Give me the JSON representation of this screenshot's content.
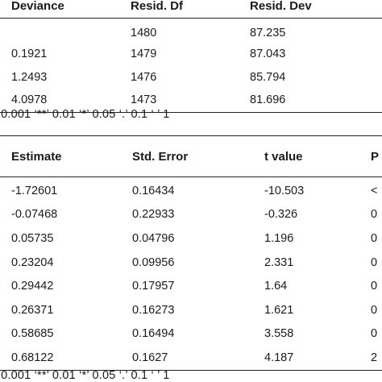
{
  "anova_table": {
    "headers": [
      "Deviance",
      "Resid. Df",
      "Resid. Dev"
    ],
    "rows": [
      [
        "",
        "1480",
        "87.235"
      ],
      [
        "0.1921",
        "1479",
        "87.043"
      ],
      [
        "1.2493",
        "1476",
        "85.794"
      ],
      [
        "4.0978",
        "1473",
        "81.696"
      ]
    ]
  },
  "signif_codes_1": "’ 0.001 ‘**’ 0.01 ‘*’ 0.05 ‘.’ 0.1 ‘ ’ 1",
  "coef_table": {
    "headers": [
      "Estimate",
      "Std. Error",
      "t value",
      "P"
    ],
    "rows": [
      [
        "-1.72601",
        "0.16434",
        "-10.503",
        "<"
      ],
      [
        "-0.07468",
        "0.22933",
        "-0.326",
        "0"
      ],
      [
        "0.05735",
        "0.04796",
        "1.196",
        "0"
      ],
      [
        "0.23204",
        "0.09956",
        "2.331",
        "0"
      ],
      [
        "0.29442",
        "0.17957",
        "1.64",
        "0"
      ],
      [
        "0.26371",
        "0.16273",
        "1.621",
        "0"
      ],
      [
        "0.58685",
        "0.16494",
        "3.558",
        "0"
      ],
      [
        "0.68122",
        "0.1627",
        "4.187",
        "2"
      ]
    ]
  },
  "signif_codes_2": "’ 0.001 ‘**’ 0.01 ‘*’ 0.05 ‘.’ 0.1 ‘ ’ 1"
}
